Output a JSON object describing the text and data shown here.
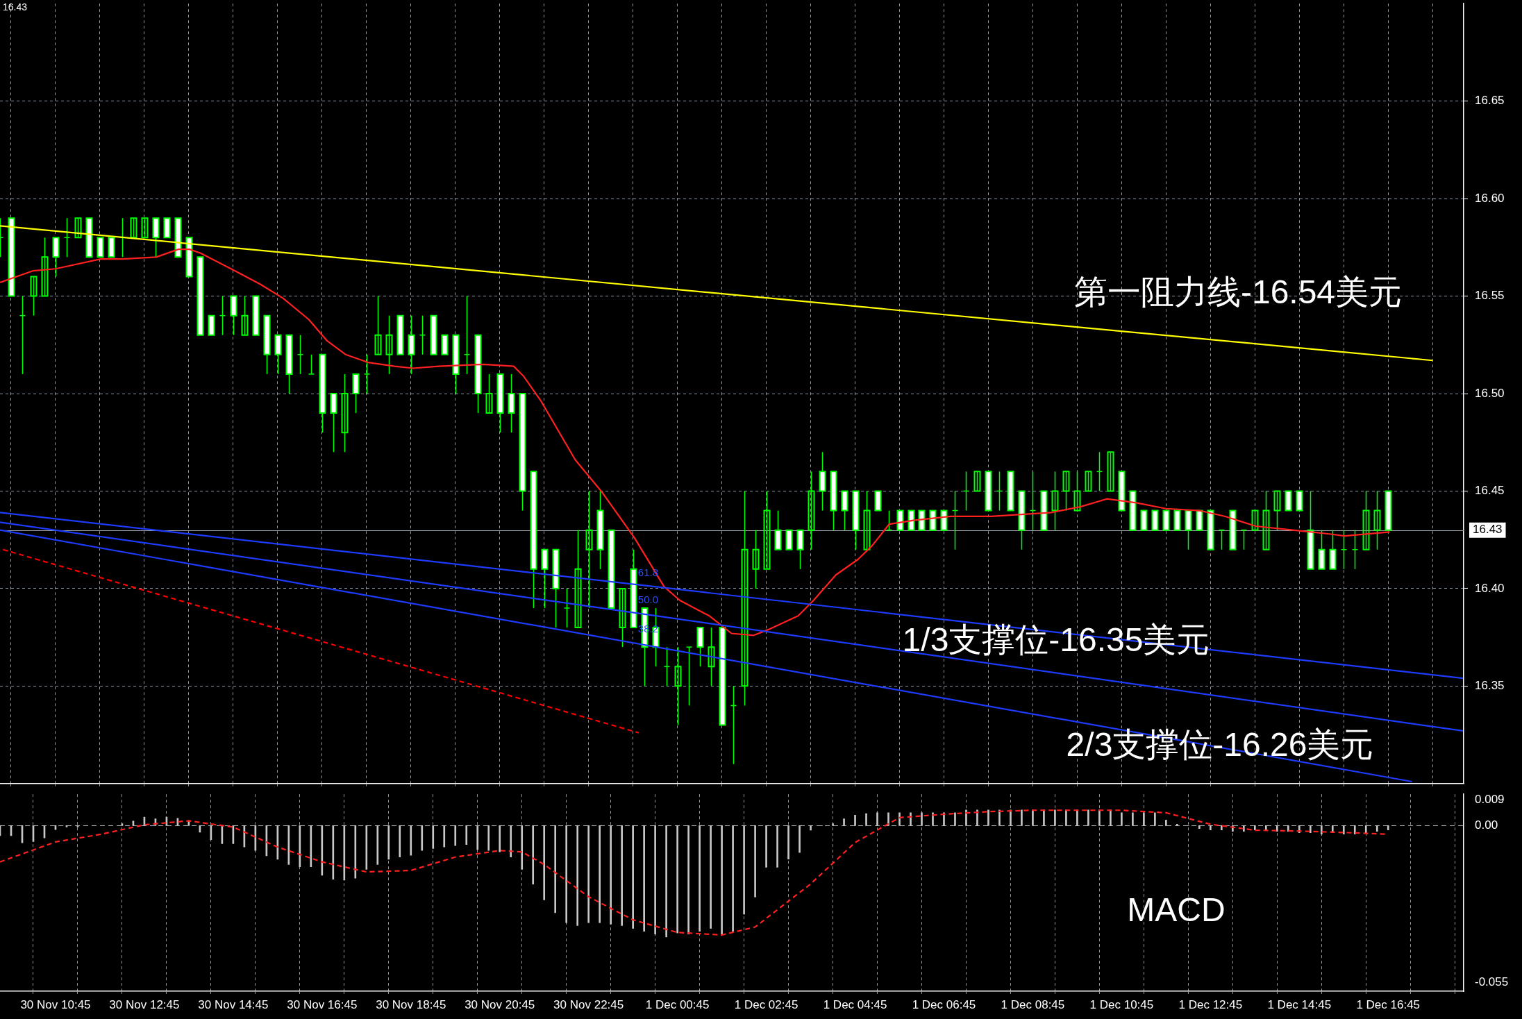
{
  "chart_data": [
    {
      "type": "candlestick",
      "x": [
        "--11-30T09:30",
        "--11-30T09:45",
        "--11-30T10:00",
        "--11-30T10:15",
        "--11-30T10:30",
        "--11-30T10:45",
        "--11-30T11:00",
        "--11-30T11:15",
        "--11-30T11:30",
        "--11-30T11:45",
        "--11-30T12:00",
        "--11-30T12:15",
        "--11-30T12:30",
        "--11-30T12:45",
        "--11-30T13:00",
        "--11-30T13:15",
        "--11-30T13:30",
        "--11-30T13:45",
        "--11-30T14:00",
        "--11-30T14:15",
        "--11-30T14:30",
        "--11-30T14:45",
        "--11-30T15:00",
        "--11-30T15:15",
        "--11-30T15:30",
        "--11-30T15:45",
        "--11-30T16:00",
        "--11-30T16:15",
        "--11-30T16:30",
        "--11-30T16:45",
        "--11-30T17:00",
        "--11-30T17:15",
        "--11-30T17:30",
        "--11-30T17:45",
        "--11-30T18:00",
        "--11-30T18:15",
        "--11-30T18:30",
        "--11-30T18:45",
        "--11-30T19:00",
        "--11-30T19:15",
        "--11-30T19:30",
        "--11-30T19:45",
        "--11-30T20:00",
        "--11-30T20:15",
        "--11-30T20:30",
        "--11-30T20:45",
        "--11-30T21:00",
        "--11-30T21:15",
        "--11-30T21:30",
        "--11-30T21:45",
        "--11-30T22:00",
        "--11-30T22:15",
        "--11-30T22:30",
        "--11-30T22:45",
        "--11-30T23:00",
        "--11-30T23:15",
        "--11-30T23:30",
        "--11-30T23:45",
        "--12-01T00:00",
        "--12-01T00:15",
        "--12-01T00:30",
        "--12-01T00:45",
        "--12-01T01:00",
        "--12-01T01:15",
        "--12-01T01:30",
        "--12-01T01:45",
        "--12-01T02:00",
        "--12-01T02:15",
        "--12-01T02:30",
        "--12-01T02:45",
        "--12-01T03:00",
        "--12-01T03:15",
        "--12-01T03:30",
        "--12-01T03:45",
        "--12-01T04:00",
        "--12-01T04:15",
        "--12-01T04:30",
        "--12-01T04:45",
        "--12-01T05:00",
        "--12-01T05:15",
        "--12-01T05:30",
        "--12-01T05:45",
        "--12-01T06:00",
        "--12-01T06:15",
        "--12-01T06:30",
        "--12-01T06:45",
        "--12-01T07:00",
        "--12-01T07:15",
        "--12-01T07:30",
        "--12-01T07:45",
        "--12-01T08:00",
        "--12-01T08:15",
        "--12-01T08:30",
        "--12-01T08:45",
        "--12-01T09:00",
        "--12-01T09:15",
        "--12-01T09:30",
        "--12-01T09:45",
        "--12-01T10:00",
        "--12-01T10:15",
        "--12-01T10:30",
        "--12-01T10:45",
        "--12-01T11:00",
        "--12-01T11:15",
        "--12-01T11:30",
        "--12-01T11:45",
        "--12-01T12:00",
        "--12-01T12:15",
        "--12-01T12:30",
        "--12-01T12:45",
        "--12-01T13:00",
        "--12-01T13:15",
        "--12-01T13:30",
        "--12-01T13:45",
        "--12-01T14:00",
        "--12-01T14:15",
        "--12-01T14:30",
        "--12-01T14:45",
        "--12-01T15:00",
        "--12-01T15:15",
        "--12-01T15:30",
        "--12-01T15:45",
        "--12-01T16:00",
        "--12-01T16:15",
        "--12-01T16:30",
        "--12-01T16:45"
      ],
      "ohlc": [
        [
          16.58,
          16.59,
          16.57,
          16.58
        ],
        [
          16.59,
          16.59,
          16.55,
          16.55
        ],
        [
          16.54,
          16.55,
          16.51,
          16.54
        ],
        [
          16.55,
          16.56,
          16.54,
          16.56
        ],
        [
          16.55,
          16.58,
          16.55,
          16.57
        ],
        [
          16.58,
          16.58,
          16.56,
          16.57
        ],
        [
          16.58,
          16.59,
          16.57,
          16.58
        ],
        [
          16.58,
          16.59,
          16.58,
          16.59
        ],
        [
          16.59,
          16.59,
          16.57,
          16.57
        ],
        [
          16.58,
          16.58,
          16.57,
          16.57
        ],
        [
          16.58,
          16.58,
          16.57,
          16.57
        ],
        [
          16.58,
          16.59,
          16.57,
          16.58
        ],
        [
          16.58,
          16.59,
          16.58,
          16.59
        ],
        [
          16.58,
          16.59,
          16.58,
          16.59
        ],
        [
          16.59,
          16.59,
          16.57,
          16.58
        ],
        [
          16.59,
          16.59,
          16.58,
          16.58
        ],
        [
          16.59,
          16.59,
          16.57,
          16.57
        ],
        [
          16.58,
          16.58,
          16.56,
          16.56
        ],
        [
          16.57,
          16.57,
          16.53,
          16.53
        ],
        [
          16.54,
          16.54,
          16.53,
          16.53
        ],
        [
          16.54,
          16.55,
          16.53,
          16.54
        ],
        [
          16.55,
          16.55,
          16.53,
          16.54
        ],
        [
          16.53,
          16.55,
          16.53,
          16.54
        ],
        [
          16.55,
          16.55,
          16.53,
          16.53
        ],
        [
          16.54,
          16.54,
          16.51,
          16.52
        ],
        [
          16.53,
          16.53,
          16.51,
          16.52
        ],
        [
          16.53,
          16.53,
          16.5,
          16.51
        ],
        [
          16.52,
          16.53,
          16.51,
          16.52
        ],
        [
          16.51,
          16.52,
          16.51,
          16.51
        ],
        [
          16.52,
          16.52,
          16.48,
          16.49
        ],
        [
          16.5,
          16.5,
          16.47,
          16.49
        ],
        [
          16.48,
          16.51,
          16.47,
          16.5
        ],
        [
          16.51,
          16.51,
          16.49,
          16.5
        ],
        [
          16.51,
          16.52,
          16.5,
          16.51
        ],
        [
          16.52,
          16.55,
          16.52,
          16.53
        ],
        [
          16.52,
          16.54,
          16.51,
          16.53
        ],
        [
          16.54,
          16.54,
          16.52,
          16.52
        ],
        [
          16.53,
          16.54,
          16.51,
          16.52
        ],
        [
          16.53,
          16.54,
          16.52,
          16.53
        ],
        [
          16.54,
          16.54,
          16.52,
          16.52
        ],
        [
          16.53,
          16.53,
          16.52,
          16.52
        ],
        [
          16.53,
          16.53,
          16.5,
          16.51
        ],
        [
          16.52,
          16.55,
          16.51,
          16.52
        ],
        [
          16.53,
          16.53,
          16.49,
          16.5
        ],
        [
          16.49,
          16.51,
          16.49,
          16.5
        ],
        [
          16.51,
          16.51,
          16.48,
          16.49
        ],
        [
          16.5,
          16.51,
          16.48,
          16.49
        ],
        [
          16.5,
          16.5,
          16.44,
          16.45
        ],
        [
          16.46,
          16.46,
          16.39,
          16.41
        ],
        [
          16.42,
          16.42,
          16.39,
          16.41
        ],
        [
          16.42,
          16.42,
          16.38,
          16.4
        ],
        [
          16.39,
          16.4,
          16.38,
          16.39
        ],
        [
          16.38,
          16.43,
          16.38,
          16.41
        ],
        [
          16.42,
          16.45,
          16.39,
          16.43
        ],
        [
          16.44,
          16.45,
          16.41,
          16.42
        ],
        [
          16.43,
          16.43,
          16.39,
          16.39
        ],
        [
          16.38,
          16.4,
          16.37,
          16.4
        ],
        [
          16.41,
          16.42,
          16.38,
          16.38
        ],
        [
          16.39,
          16.39,
          16.35,
          16.37
        ],
        [
          16.38,
          16.39,
          16.36,
          16.37
        ],
        [
          16.36,
          16.37,
          16.35,
          16.36
        ],
        [
          16.35,
          16.37,
          16.33,
          16.36
        ],
        [
          16.37,
          16.37,
          16.34,
          16.37
        ],
        [
          16.38,
          16.38,
          16.36,
          16.37
        ],
        [
          16.36,
          16.38,
          16.35,
          16.37
        ],
        [
          16.38,
          16.38,
          16.33,
          16.33
        ],
        [
          16.34,
          16.35,
          16.31,
          16.34
        ],
        [
          16.35,
          16.45,
          16.34,
          16.42
        ],
        [
          16.41,
          16.43,
          16.4,
          16.42
        ],
        [
          16.41,
          16.45,
          16.41,
          16.44
        ],
        [
          16.43,
          16.44,
          16.42,
          16.42
        ],
        [
          16.43,
          16.43,
          16.42,
          16.42
        ],
        [
          16.43,
          16.43,
          16.41,
          16.42
        ],
        [
          16.43,
          16.46,
          16.42,
          16.45
        ],
        [
          16.46,
          16.47,
          16.44,
          16.45
        ],
        [
          16.46,
          16.46,
          16.43,
          16.44
        ],
        [
          16.45,
          16.45,
          16.43,
          16.44
        ],
        [
          16.45,
          16.45,
          16.42,
          16.43
        ],
        [
          16.42,
          16.45,
          16.42,
          16.44
        ],
        [
          16.45,
          16.45,
          16.44,
          16.44
        ],
        [
          16.43,
          16.44,
          16.43,
          16.43
        ],
        [
          16.44,
          16.44,
          16.43,
          16.43
        ],
        [
          16.44,
          16.44,
          16.43,
          16.43
        ],
        [
          16.44,
          16.44,
          16.43,
          16.43
        ],
        [
          16.44,
          16.44,
          16.43,
          16.43
        ],
        [
          16.44,
          16.44,
          16.43,
          16.43
        ],
        [
          16.44,
          16.45,
          16.42,
          16.44
        ],
        [
          16.45,
          16.46,
          16.44,
          16.45
        ],
        [
          16.45,
          16.46,
          16.45,
          16.46
        ],
        [
          16.46,
          16.46,
          16.44,
          16.44
        ],
        [
          16.45,
          16.46,
          16.44,
          16.45
        ],
        [
          16.46,
          16.46,
          16.44,
          16.44
        ],
        [
          16.45,
          16.45,
          16.42,
          16.43
        ],
        [
          16.44,
          16.46,
          16.43,
          16.44
        ],
        [
          16.45,
          16.45,
          16.43,
          16.43
        ],
        [
          16.44,
          16.46,
          16.43,
          16.45
        ],
        [
          16.45,
          16.46,
          16.44,
          16.46
        ],
        [
          16.44,
          16.46,
          16.44,
          16.45
        ],
        [
          16.45,
          16.46,
          16.45,
          16.46
        ],
        [
          16.46,
          16.47,
          16.45,
          16.46
        ],
        [
          16.45,
          16.47,
          16.45,
          16.47
        ],
        [
          16.46,
          16.46,
          16.44,
          16.44
        ],
        [
          16.45,
          16.45,
          16.43,
          16.43
        ],
        [
          16.44,
          16.44,
          16.43,
          16.43
        ],
        [
          16.44,
          16.44,
          16.43,
          16.43
        ],
        [
          16.44,
          16.44,
          16.43,
          16.43
        ],
        [
          16.44,
          16.44,
          16.43,
          16.43
        ],
        [
          16.44,
          16.44,
          16.42,
          16.43
        ],
        [
          16.44,
          16.44,
          16.43,
          16.43
        ],
        [
          16.44,
          16.44,
          16.42,
          16.42
        ],
        [
          16.43,
          16.43,
          16.42,
          16.43
        ],
        [
          16.44,
          16.44,
          16.42,
          16.42
        ],
        [
          16.43,
          16.43,
          16.42,
          16.43
        ],
        [
          16.43,
          16.44,
          16.43,
          16.44
        ],
        [
          16.42,
          16.45,
          16.42,
          16.44
        ],
        [
          16.44,
          16.45,
          16.43,
          16.45
        ],
        [
          16.45,
          16.45,
          16.44,
          16.44
        ],
        [
          16.45,
          16.45,
          16.44,
          16.44
        ],
        [
          16.43,
          16.45,
          16.41,
          16.41
        ],
        [
          16.42,
          16.43,
          16.41,
          16.41
        ],
        [
          16.42,
          16.43,
          16.41,
          16.41
        ],
        [
          16.42,
          16.43,
          16.41,
          16.42
        ],
        [
          16.42,
          16.43,
          16.41,
          16.42
        ],
        [
          16.42,
          16.45,
          16.42,
          16.44
        ],
        [
          16.43,
          16.45,
          16.42,
          16.44
        ],
        [
          16.45,
          16.45,
          16.43,
          16.43
        ]
      ],
      "color": "#00ff00",
      "colors": [
        "#00ff00",
        "#ffffff",
        "#00ff00",
        "#00ff00",
        "#00ff00",
        "#ffffff",
        "#00ff00",
        "#00ff00",
        "#ffffff",
        "#ffffff",
        "#ffffff",
        "#00ff00",
        "#00ff00",
        "#00ff00",
        "#ffffff",
        "#ffffff",
        "#ffffff",
        "#ffffff",
        "#ffffff",
        "#ffffff",
        "#00ff00",
        "#ffffff",
        "#00ff00",
        "#ffffff",
        "#ffffff",
        "#ffffff",
        "#ffffff",
        "#00ff00",
        "#00ff00",
        "#ffffff",
        "#ffffff",
        "#00ff00",
        "#ffffff",
        "#00ff00",
        "#00ff00",
        "#00ff00",
        "#ffffff",
        "#ffffff",
        "#00ff00",
        "#ffffff",
        "#ffffff",
        "#ffffff",
        "#00ff00",
        "#ffffff",
        "#00ff00",
        "#ffffff",
        "#ffffff",
        "#ffffff",
        "#ffffff",
        "#ffffff",
        "#ffffff",
        "#00ff00",
        "#00ff00",
        "#00ff00",
        "#ffffff",
        "#ffffff",
        "#00ff00",
        "#ffffff",
        "#ffffff",
        "#ffffff",
        "#00ff00",
        "#00ff00",
        "#00ff00",
        "#ffffff",
        "#00ff00",
        "#ffffff",
        "#00ff00",
        "#00ff00",
        "#00ff00",
        "#00ff00",
        "#ffffff",
        "#ffffff",
        "#ffffff",
        "#00ff00",
        "#ffffff",
        "#ffffff",
        "#ffffff",
        "#ffffff",
        "#00ff00",
        "#ffffff",
        "#00ff00",
        "#ffffff",
        "#ffffff",
        "#ffffff",
        "#ffffff",
        "#ffffff",
        "#00ff00",
        "#00ff00",
        "#00ff00",
        "#ffffff",
        "#00ff00",
        "#ffffff",
        "#ffffff",
        "#00ff00",
        "#ffffff",
        "#00ff00",
        "#00ff00",
        "#00ff00",
        "#00ff00",
        "#00ff00",
        "#00ff00",
        "#ffffff",
        "#ffffff",
        "#ffffff",
        "#ffffff",
        "#ffffff",
        "#ffffff",
        "#ffffff",
        "#ffffff",
        "#ffffff",
        "#00ff00",
        "#ffffff",
        "#00ff00",
        "#00ff00",
        "#00ff00",
        "#00ff00",
        "#ffffff",
        "#ffffff",
        "#ffffff",
        "#ffffff",
        "#ffffff",
        "#00ff00",
        "#00ff00",
        "#00ff00",
        "#00ff00",
        "#ffffff"
      ],
      "xlim": [
        "--11-30T09:30",
        "--12-01T18:27"
      ],
      "xticks": [
        {
          "value": "--11-30T09:45",
          "label": null
        },
        {
          "value": "--11-30T10:45",
          "label": null
        },
        {
          "value": "--11-30T11:45",
          "label": null
        },
        {
          "value": "--11-30T12:45",
          "label": null
        },
        {
          "value": "--11-30T13:45",
          "label": null
        },
        {
          "value": "--11-30T14:45",
          "label": null
        },
        {
          "value": "--11-30T15:45",
          "label": null
        },
        {
          "value": "--11-30T16:45",
          "label": null
        },
        {
          "value": "--11-30T17:45",
          "label": null
        },
        {
          "value": "--11-30T18:45",
          "label": null
        },
        {
          "value": "--11-30T19:45",
          "label": null
        },
        {
          "value": "--11-30T20:45",
          "label": null
        },
        {
          "value": "--11-30T21:45",
          "label": null
        },
        {
          "value": "--11-30T22:45",
          "label": null
        },
        {
          "value": "--11-30T23:45",
          "label": null
        },
        {
          "value": "--12-01T00:45",
          "label": null
        },
        {
          "value": "--12-01T01:45",
          "label": null
        },
        {
          "value": "--12-01T02:45",
          "label": null
        },
        {
          "value": "--12-01T03:45",
          "label": null
        },
        {
          "value": "--12-01T04:45",
          "label": null
        },
        {
          "value": "--12-01T05:45",
          "label": null
        },
        {
          "value": "--12-01T06:45",
          "label": null
        },
        {
          "value": "--12-01T07:45",
          "label": null
        },
        {
          "value": "--12-01T08:45",
          "label": null
        },
        {
          "value": "--12-01T09:45",
          "label": null
        },
        {
          "value": "--12-01T10:45",
          "label": null
        },
        {
          "value": "--12-01T11:45",
          "label": null
        },
        {
          "value": "--12-01T12:45",
          "label": null
        },
        {
          "value": "--12-01T13:45",
          "label": null
        },
        {
          "value": "--12-01T14:45",
          "label": null
        },
        {
          "value": "--12-01T15:45",
          "label": null
        },
        {
          "value": "--12-01T16:45",
          "label": null
        },
        {
          "value": "--12-01T17:45",
          "label": null
        }
      ],
      "ylim": [
        16.3,
        16.7
      ],
      "yticks": [
        16.35,
        {
          "value": 16.4,
          "label": "16.40"
        },
        16.45,
        {
          "value": 16.5,
          "label": "16.50"
        },
        16.55,
        {
          "value": 16.6,
          "label": "16.60"
        },
        16.65
      ],
      "grid": true,
      "tick_labels": "y",
      "series": [
        {
          "type": "line",
          "x": [
            "--11-30T09:30",
            "--12-01T17:45"
          ],
          "values": [
            16.586,
            16.517
          ],
          "color": "#ffff00",
          "line_style": "solid"
        },
        {
          "type": "line",
          "x": [
            "--11-30T09:30",
            "--12-01T18:26"
          ],
          "values": [
            16.439,
            16.354
          ],
          "color": "#1e3cff",
          "line_style": "solid"
        },
        {
          "type": "line",
          "x": [
            "--11-30T09:30",
            "--12-01T18:26"
          ],
          "values": [
            16.434,
            16.327
          ],
          "color": "#1e3cff",
          "line_style": "solid"
        },
        {
          "type": "line",
          "x": [
            "--11-30T09:30",
            "--12-01T17:17"
          ],
          "values": [
            16.43,
            16.301
          ],
          "color": "#1e3cff",
          "line_style": "solid"
        },
        {
          "type": "line",
          "x": [
            "--11-30T09:34",
            "--11-30T23:53"
          ],
          "values": [
            16.42,
            16.326
          ],
          "color": "#ff0000",
          "line_style": "dashed"
        },
        {
          "type": "line",
          "x": [
            "--11-30T09:30",
            "--11-30T10:15",
            "--11-30T10:45",
            "--11-30T11:46",
            "--11-30T12:16",
            "--11-30T13:01",
            "--11-30T13:31",
            "--11-30T13:46",
            "--11-30T14:01",
            "--11-30T14:47",
            "--11-30T15:22",
            "--11-30T15:52",
            "--11-30T16:27",
            "--11-30T16:52",
            "--11-30T17:17",
            "--11-30T17:47",
            "--11-30T18:23",
            "--11-30T18:48",
            "--11-30T19:23",
            "--11-30T20:23",
            "--11-30T21:04",
            "--11-30T21:17",
            "--11-30T21:41",
            "--11-30T22:27",
            "--11-30T23:02",
            "--11-30T23:47",
            "--12-01T00:27",
            "--12-01T00:48",
            "--12-01T01:28",
            "--12-01T01:58",
            "--12-01T02:28",
            "--12-01T02:48",
            "--12-01T03:28",
            "--12-01T03:49",
            "--12-01T04:19",
            "--12-01T04:49",
            "--12-01T05:08",
            "--12-01T05:31",
            "--12-01T06:04",
            "--12-01T06:54",
            "--12-01T07:49",
            "--12-01T09:10",
            "--12-01T09:50",
            "--12-01T10:25",
            "--12-01T11:05",
            "--12-01T11:45",
            "--12-01T12:30",
            "--12-01T13:05",
            "--12-01T13:46",
            "--12-01T14:36",
            "--12-01T15:26",
            "--12-01T15:46",
            "--12-01T16:47"
          ],
          "values": [
            16.557,
            16.563,
            16.564,
            16.569,
            16.569,
            16.57,
            16.574,
            16.574,
            16.572,
            16.563,
            16.556,
            16.549,
            16.538,
            16.527,
            16.52,
            16.516,
            16.514,
            16.513,
            16.514,
            16.515,
            16.514,
            16.509,
            16.496,
            16.466,
            16.45,
            16.426,
            16.401,
            16.394,
            16.386,
            16.377,
            16.376,
            16.379,
            16.386,
            16.394,
            16.407,
            16.415,
            16.422,
            16.433,
            16.435,
            16.437,
            16.437,
            16.439,
            16.442,
            16.446,
            16.444,
            16.441,
            16.44,
            16.437,
            16.432,
            16.43,
            16.428,
            16.427,
            16.429
          ],
          "color": "#ff2020",
          "line_style": "solid"
        }
      ],
      "ref_lines": [
        {
          "axis": "y",
          "value": 16.43,
          "label": "16.43",
          "color": "#a0a8b0"
        }
      ],
      "annotations": [
        "16.43",
        "第一阻力线-16.54美元",
        "1/3支撑位-16.35美元",
        "2/3支撑位-16.26美元",
        {
          "text": "61.8",
          "x": "--11-30T23:48",
          "y": 16.408
        },
        {
          "text": "50.0",
          "x": "--11-30T23:48",
          "y": 16.394
        },
        {
          "text": "38.2",
          "x": "--11-30T23:48",
          "y": 16.379
        }
      ]
    },
    {
      "type": "bar",
      "x": [
        "--11-30T09:30",
        "--11-30T09:45",
        "--11-30T10:00",
        "--11-30T10:15",
        "--11-30T10:30",
        "--11-30T10:45",
        "--11-30T11:00",
        "--11-30T11:15",
        "--11-30T11:30",
        "--11-30T11:45",
        "--11-30T12:00",
        "--11-30T12:15",
        "--11-30T12:30",
        "--11-30T12:45",
        "--11-30T13:00",
        "--11-30T13:15",
        "--11-30T13:30",
        "--11-30T13:45",
        "--11-30T14:00",
        "--11-30T14:15",
        "--11-30T14:30",
        "--11-30T14:45",
        "--11-30T15:00",
        "--11-30T15:15",
        "--11-30T15:30",
        "--11-30T15:45",
        "--11-30T16:00",
        "--11-30T16:15",
        "--11-30T16:30",
        "--11-30T16:45",
        "--11-30T17:00",
        "--11-30T17:15",
        "--11-30T17:30",
        "--11-30T17:45",
        "--11-30T18:00",
        "--11-30T18:15",
        "--11-30T18:30",
        "--11-30T18:45",
        "--11-30T19:00",
        "--11-30T19:15",
        "--11-30T19:30",
        "--11-30T19:45",
        "--11-30T20:00",
        "--11-30T20:15",
        "--11-30T20:30",
        "--11-30T20:45",
        "--11-30T21:00",
        "--11-30T21:15",
        "--11-30T21:30",
        "--11-30T21:45",
        "--11-30T22:00",
        "--11-30T22:15",
        "--11-30T22:30",
        "--11-30T22:45",
        "--11-30T23:00",
        "--11-30T23:15",
        "--11-30T23:30",
        "--11-30T23:45",
        "--12-01T00:00",
        "--12-01T00:15",
        "--12-01T00:30",
        "--12-01T00:45",
        "--12-01T01:00",
        "--12-01T01:15",
        "--12-01T01:30",
        "--12-01T01:45",
        "--12-01T02:00",
        "--12-01T02:15",
        "--12-01T02:30",
        "--12-01T02:45",
        "--12-01T03:00",
        "--12-01T03:15",
        "--12-01T03:30",
        "--12-01T03:45",
        "--12-01T04:00",
        "--12-01T04:15",
        "--12-01T04:30",
        "--12-01T04:45",
        "--12-01T05:00",
        "--12-01T05:15",
        "--12-01T05:30",
        "--12-01T05:45",
        "--12-01T06:00",
        "--12-01T06:15",
        "--12-01T06:30",
        "--12-01T06:45",
        "--12-01T07:00",
        "--12-01T07:15",
        "--12-01T07:30",
        "--12-01T07:45",
        "--12-01T08:00",
        "--12-01T08:15",
        "--12-01T08:30",
        "--12-01T08:45",
        "--12-01T09:00",
        "--12-01T09:15",
        "--12-01T09:30",
        "--12-01T09:45",
        "--12-01T10:00",
        "--12-01T10:15",
        "--12-01T10:30",
        "--12-01T10:45",
        "--12-01T11:00",
        "--12-01T11:15",
        "--12-01T11:30",
        "--12-01T11:45",
        "--12-01T12:00",
        "--12-01T12:15",
        "--12-01T12:30",
        "--12-01T12:45",
        "--12-01T13:00",
        "--12-01T13:15",
        "--12-01T13:30",
        "--12-01T13:45",
        "--12-01T14:00",
        "--12-01T14:15",
        "--12-01T14:30",
        "--12-01T14:45",
        "--12-01T15:00",
        "--12-01T15:15",
        "--12-01T15:30",
        "--12-01T15:45",
        "--12-01T16:00",
        "--12-01T16:15",
        "--12-01T16:30",
        "--12-01T16:45"
      ],
      "values": [
        -0.0035,
        -0.0035,
        -0.006,
        -0.0056,
        -0.0043,
        -0.0014,
        -0.0005,
        -0.0005,
        null,
        null,
        null,
        0.0007,
        0.0016,
        0.003,
        0.0024,
        0.003,
        0.0026,
        0.0017,
        -0.0023,
        -0.0049,
        -0.0063,
        -0.0063,
        -0.0075,
        -0.0087,
        -0.0106,
        -0.0118,
        -0.0136,
        -0.0144,
        -0.0144,
        -0.0174,
        -0.0188,
        -0.0191,
        -0.0184,
        -0.0153,
        -0.0136,
        -0.0118,
        -0.011,
        -0.0104,
        -0.0087,
        -0.008,
        -0.0075,
        -0.007,
        -0.0066,
        -0.0084,
        -0.0087,
        -0.0092,
        -0.011,
        -0.0153,
        -0.0205,
        -0.026,
        -0.0305,
        -0.034,
        -0.035,
        -0.034,
        -0.034,
        -0.0345,
        -0.035,
        -0.036,
        -0.037,
        -0.038,
        -0.039,
        -0.0376,
        -0.038,
        -0.037,
        -0.036,
        -0.038,
        -0.037,
        -0.031,
        -0.025,
        -0.0146,
        -0.0146,
        -0.0117,
        -0.0094,
        -0.0016,
        0,
        0.0007,
        0.0024,
        0.0037,
        0.0042,
        0.0045,
        0.0045,
        0.0045,
        0.0045,
        0.0045,
        0.0045,
        0.0045,
        0.0045,
        0.0055,
        0.0055,
        0.0055,
        0.0055,
        0.0055,
        0.0055,
        0.0055,
        0.0055,
        0.0055,
        0.0055,
        0.0055,
        0.0055,
        0.0055,
        0.0055,
        0.0045,
        0.0045,
        0.0045,
        0.0045,
        0.002,
        0.0005,
        0,
        -0.001,
        -0.0015,
        -0.0015,
        -0.002,
        -0.002,
        -0.0015,
        -0.0015,
        -0.002,
        -0.002,
        -0.0025,
        -0.0025,
        -0.003,
        -0.0025,
        -0.003,
        -0.003,
        -0.0025,
        -0.002,
        -0.0015
      ],
      "color": "#c8c8c8",
      "xlim": [
        "--11-30T09:30",
        "--12-01T18:27"
      ],
      "xticks": [
        {
          "value": "--11-30T09:45",
          "label": null
        },
        {
          "value": "--11-30T10:45",
          "label": "30 Nov 10:45"
        },
        {
          "value": "--11-30T11:45",
          "label": null
        },
        {
          "value": "--11-30T12:45",
          "label": "30 Nov 12:45"
        },
        {
          "value": "--11-30T13:45",
          "label": null
        },
        {
          "value": "--11-30T14:45",
          "label": "30 Nov 14:45"
        },
        {
          "value": "--11-30T15:45",
          "label": null
        },
        {
          "value": "--11-30T16:45",
          "label": "30 Nov 16:45"
        },
        {
          "value": "--11-30T17:45",
          "label": null
        },
        {
          "value": "--11-30T18:45",
          "label": "30 Nov 18:45"
        },
        {
          "value": "--11-30T19:45",
          "label": null
        },
        {
          "value": "--11-30T20:45",
          "label": "30 Nov 20:45"
        },
        {
          "value": "--11-30T21:45",
          "label": null
        },
        {
          "value": "--11-30T22:45",
          "label": "30 Nov 22:45"
        },
        {
          "value": "--11-30T23:45",
          "label": null
        },
        {
          "value": "--12-01T00:45",
          "label": "1 Dec 00:45"
        },
        {
          "value": "--12-01T01:45",
          "label": null
        },
        {
          "value": "--12-01T02:45",
          "label": "1 Dec 02:45"
        },
        {
          "value": "--12-01T03:45",
          "label": null
        },
        {
          "value": "--12-01T04:45",
          "label": "1 Dec 04:45"
        },
        {
          "value": "--12-01T05:45",
          "label": null
        },
        {
          "value": "--12-01T06:45",
          "label": "1 Dec 06:45"
        },
        {
          "value": "--12-01T07:45",
          "label": null
        },
        {
          "value": "--12-01T08:45",
          "label": "1 Dec 08:45"
        },
        {
          "value": "--12-01T09:45",
          "label": null
        },
        {
          "value": "--12-01T10:45",
          "label": "1 Dec 10:45"
        },
        {
          "value": "--12-01T11:45",
          "label": null
        },
        {
          "value": "--12-01T12:45",
          "label": "1 Dec 12:45"
        },
        {
          "value": "--12-01T13:45",
          "label": null
        },
        {
          "value": "--12-01T14:45",
          "label": "1 Dec 14:45"
        },
        {
          "value": "--12-01T15:45",
          "label": null
        },
        {
          "value": "--12-01T16:45",
          "label": "1 Dec 16:45"
        },
        {
          "value": "--12-01T17:45",
          "label": null
        }
      ],
      "ylim": [
        -0.058,
        0.011
      ],
      "yticks": [
        -0.055,
        {
          "value": 0,
          "label": "0.00"
        },
        0.009
      ],
      "grid": "x",
      "series": [
        {
          "type": "line",
          "x": [
            "--11-30T09:30",
            "--11-30T10:45",
            "--11-30T11:45",
            "--11-30T12:45",
            "--11-30T13:45",
            "--11-30T14:45",
            "--11-30T15:45",
            "--11-30T16:45",
            "--11-30T17:45",
            "--11-30T18:45",
            "--11-30T19:45",
            "--11-30T20:45",
            "--11-30T21:15",
            "--11-30T21:45",
            "--11-30T22:45",
            "--11-30T23:45",
            "--12-01T00:45",
            "--12-01T01:45",
            "--12-01T02:30",
            "--12-01T03:45",
            "--12-01T04:45",
            "--12-01T05:45",
            "--12-01T06:45",
            "--12-01T07:45",
            "--12-01T08:45",
            "--12-01T09:45",
            "--12-01T10:45",
            "--12-01T11:45",
            "--12-01T12:45",
            "--12-01T13:45",
            "--12-01T14:45",
            "--12-01T15:45",
            "--12-01T16:45"
          ],
          "values": [
            -0.0127,
            -0.0057,
            -0.0031,
            0.0003,
            0.0017,
            -0.0005,
            -0.0075,
            -0.0127,
            -0.0162,
            -0.0157,
            -0.011,
            -0.0087,
            -0.0092,
            -0.0136,
            -0.0249,
            -0.033,
            -0.0374,
            -0.0383,
            -0.0355,
            -0.0204,
            -0.0059,
            0.0028,
            0.004,
            0.0049,
            0.0054,
            0.0054,
            0.0054,
            0.0045,
            0.0005,
            -0.0016,
            -0.0019,
            -0.0024,
            -0.003
          ],
          "color": "#ff2020",
          "line_style": "dashed"
        }
      ],
      "ref_lines": [
        {
          "axis": "y",
          "value": 0,
          "color": "#a0a8b0",
          "line_style": "dashed"
        }
      ],
      "annotations": [
        "MACD"
      ]
    }
  ]
}
